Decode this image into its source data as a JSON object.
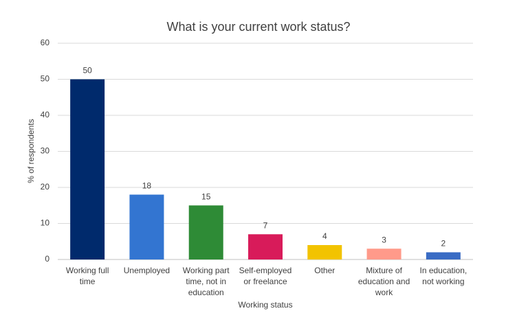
{
  "chart_data": {
    "type": "bar",
    "title": "What is your current work status?",
    "x_label": "Working status",
    "y_label": "% of respondents",
    "categories": [
      "Working full time",
      "Unemployed",
      "Working part time, not in education",
      "Self-employed or freelance",
      "Other",
      "Mixture of education and work",
      "In education, not working"
    ],
    "values": [
      50,
      18,
      15,
      7,
      4,
      3,
      2
    ],
    "colors": [
      "#002a6c",
      "#3375d1",
      "#2e8b36",
      "#d81b5a",
      "#f2c300",
      "#ff9a8a",
      "#3a6cc4"
    ],
    "ylim": [
      0,
      60
    ],
    "yticks": [
      0,
      10,
      20,
      30,
      40,
      50,
      60
    ],
    "grid": true
  }
}
